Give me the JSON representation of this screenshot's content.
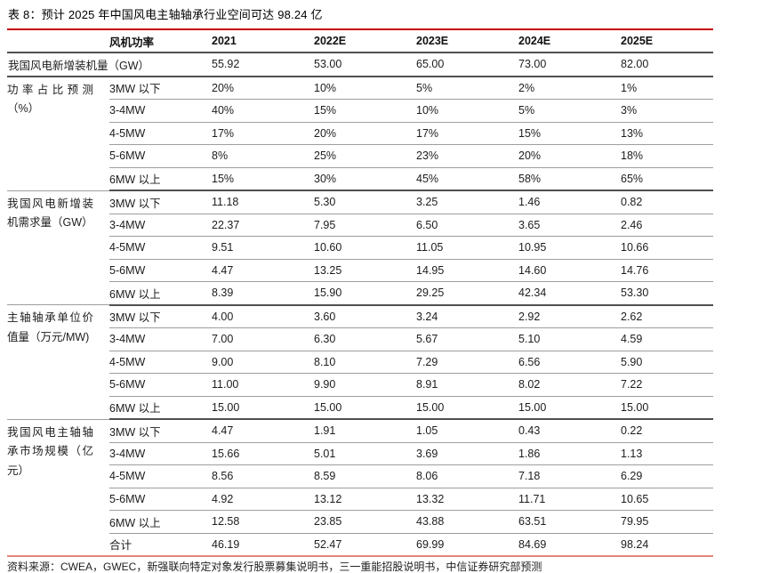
{
  "title": "表 8：预计 2025 年中国风电主轴轴承行业空间可达 98.24 亿",
  "footer": "资料来源：CWEA，GWEC，新强联向特定对象发行股票募集说明书，三一重能招股说明书，中信证券研究部预测",
  "colors": {
    "top_rule_red": "#c40000",
    "bottom_rule_red": "#e2867d",
    "dark_rule": "#4f4f4f",
    "light_rule": "#9e9e9e"
  },
  "table": {
    "columns": [
      "风机功率",
      "2021",
      "2022E",
      "2023E",
      "2024E",
      "2025E"
    ],
    "groups": [
      {
        "label": "我国风电新增装机量（GW）",
        "rows": [
          {
            "label": "",
            "values": [
              "55.92",
              "53.00",
              "65.00",
              "73.00",
              "82.00"
            ]
          }
        ]
      },
      {
        "label": "功率占比预测（%）",
        "rows": [
          {
            "label": "3MW 以下",
            "values": [
              "20%",
              "10%",
              "5%",
              "2%",
              "1%"
            ]
          },
          {
            "label": "3-4MW",
            "values": [
              "40%",
              "15%",
              "10%",
              "5%",
              "3%"
            ]
          },
          {
            "label": "4-5MW",
            "values": [
              "17%",
              "20%",
              "17%",
              "15%",
              "13%"
            ]
          },
          {
            "label": "5-6MW",
            "values": [
              "8%",
              "25%",
              "23%",
              "20%",
              "18%"
            ]
          },
          {
            "label": "6MW 以上",
            "values": [
              "15%",
              "30%",
              "45%",
              "58%",
              "65%"
            ]
          }
        ]
      },
      {
        "label": "我国风电新增装机需求量（GW）",
        "rows": [
          {
            "label": "3MW 以下",
            "values": [
              "11.18",
              "5.30",
              "3.25",
              "1.46",
              "0.82"
            ]
          },
          {
            "label": "3-4MW",
            "values": [
              "22.37",
              "7.95",
              "6.50",
              "3.65",
              "2.46"
            ]
          },
          {
            "label": "4-5MW",
            "values": [
              "9.51",
              "10.60",
              "11.05",
              "10.95",
              "10.66"
            ]
          },
          {
            "label": "5-6MW",
            "values": [
              "4.47",
              "13.25",
              "14.95",
              "14.60",
              "14.76"
            ]
          },
          {
            "label": "6MW 以上",
            "values": [
              "8.39",
              "15.90",
              "29.25",
              "42.34",
              "53.30"
            ]
          }
        ]
      },
      {
        "label": "主轴轴承单位价值量（万元/MW)",
        "rows": [
          {
            "label": "3MW 以下",
            "values": [
              "4.00",
              "3.60",
              "3.24",
              "2.92",
              "2.62"
            ]
          },
          {
            "label": "3-4MW",
            "values": [
              "7.00",
              "6.30",
              "5.67",
              "5.10",
              "4.59"
            ]
          },
          {
            "label": "4-5MW",
            "values": [
              "9.00",
              "8.10",
              "7.29",
              "6.56",
              "5.90"
            ]
          },
          {
            "label": "5-6MW",
            "values": [
              "11.00",
              "9.90",
              "8.91",
              "8.02",
              "7.22"
            ]
          },
          {
            "label": "6MW 以上",
            "values": [
              "15.00",
              "15.00",
              "15.00",
              "15.00",
              "15.00"
            ]
          }
        ]
      },
      {
        "label": "我国风电主轴轴承市场规模（亿元）",
        "rows": [
          {
            "label": "3MW 以下",
            "values": [
              "4.47",
              "1.91",
              "1.05",
              "0.43",
              "0.22"
            ]
          },
          {
            "label": "3-4MW",
            "values": [
              "15.66",
              "5.01",
              "3.69",
              "1.86",
              "1.13"
            ]
          },
          {
            "label": "4-5MW",
            "values": [
              "8.56",
              "8.59",
              "8.06",
              "7.18",
              "6.29"
            ]
          },
          {
            "label": "5-6MW",
            "values": [
              "4.92",
              "13.12",
              "13.32",
              "11.71",
              "10.65"
            ]
          },
          {
            "label": "6MW 以上",
            "values": [
              "12.58",
              "23.85",
              "43.88",
              "63.51",
              "79.95"
            ]
          },
          {
            "label": "合计",
            "values": [
              "46.19",
              "52.47",
              "69.99",
              "84.69",
              "98.24"
            ]
          }
        ]
      }
    ]
  }
}
